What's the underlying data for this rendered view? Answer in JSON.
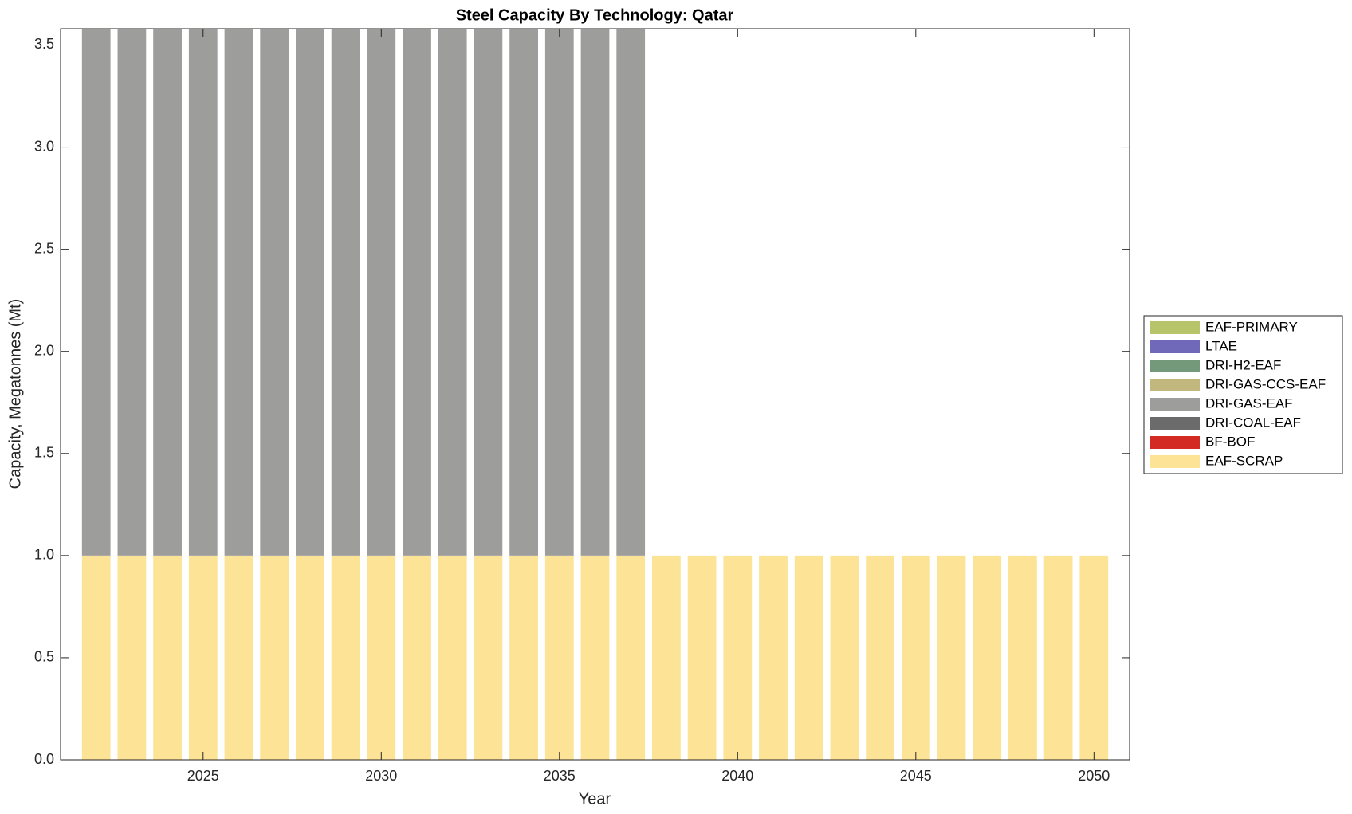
{
  "chart_data": {
    "type": "stacked_bar",
    "title": "Steel Capacity By Technology: Qatar",
    "xlabel": "Year",
    "ylabel": "Capacity, Megatonnes (Mt)",
    "x": [
      2022,
      2023,
      2024,
      2025,
      2026,
      2027,
      2028,
      2029,
      2030,
      2031,
      2032,
      2033,
      2034,
      2035,
      2036,
      2037,
      2038,
      2039,
      2040,
      2041,
      2042,
      2043,
      2044,
      2045,
      2046,
      2047,
      2048,
      2049,
      2050
    ],
    "series": [
      {
        "name": "EAF-SCRAP",
        "color": "#fde395",
        "values": [
          1,
          1,
          1,
          1,
          1,
          1,
          1,
          1,
          1,
          1,
          1,
          1,
          1,
          1,
          1,
          1,
          1,
          1,
          1,
          1,
          1,
          1,
          1,
          1,
          1,
          1,
          1,
          1,
          1
        ]
      },
      {
        "name": "BF-BOF",
        "color": "#d42a24",
        "values": [
          0,
          0,
          0,
          0,
          0,
          0,
          0,
          0,
          0,
          0,
          0,
          0,
          0,
          0,
          0,
          0,
          0,
          0,
          0,
          0,
          0,
          0,
          0,
          0,
          0,
          0,
          0,
          0,
          0
        ]
      },
      {
        "name": "DRI-COAL-EAF",
        "color": "#6b6b6b",
        "values": [
          0,
          0,
          0,
          0,
          0,
          0,
          0,
          0,
          0,
          0,
          0,
          0,
          0,
          0,
          0,
          0,
          0,
          0,
          0,
          0,
          0,
          0,
          0,
          0,
          0,
          0,
          0,
          0,
          0
        ]
      },
      {
        "name": "DRI-GAS-EAF",
        "color": "#9d9d9c",
        "values": [
          2.58,
          2.58,
          2.58,
          2.58,
          2.58,
          2.58,
          2.58,
          2.58,
          2.58,
          2.58,
          2.58,
          2.58,
          2.58,
          2.58,
          2.58,
          2.58,
          0,
          0,
          0,
          0,
          0,
          0,
          0,
          0,
          0,
          0,
          0,
          0,
          0
        ]
      },
      {
        "name": "DRI-GAS-CCS-EAF",
        "color": "#c2b87e",
        "values": [
          0,
          0,
          0,
          0,
          0,
          0,
          0,
          0,
          0,
          0,
          0,
          0,
          0,
          0,
          0,
          0,
          0,
          0,
          0,
          0,
          0,
          0,
          0,
          0,
          0,
          0,
          0,
          0,
          0
        ]
      },
      {
        "name": "DRI-H2-EAF",
        "color": "#74987a",
        "values": [
          0,
          0,
          0,
          0,
          0,
          0,
          0,
          0,
          0,
          0,
          0,
          0,
          0,
          0,
          0,
          0,
          0,
          0,
          0,
          0,
          0,
          0,
          0,
          0,
          0,
          0,
          0,
          0,
          0
        ]
      },
      {
        "name": "LTAE",
        "color": "#7068b8",
        "values": [
          0,
          0,
          0,
          0,
          0,
          0,
          0,
          0,
          0,
          0,
          0,
          0,
          0,
          0,
          0,
          0,
          0,
          0,
          0,
          0,
          0,
          0,
          0,
          0,
          0,
          0,
          0,
          0,
          0
        ]
      },
      {
        "name": "EAF-PRIMARY",
        "color": "#b8c46a",
        "values": [
          0,
          0,
          0,
          0,
          0,
          0,
          0,
          0,
          0,
          0,
          0,
          0,
          0,
          0,
          0,
          0,
          0,
          0,
          0,
          0,
          0,
          0,
          0,
          0,
          0,
          0,
          0,
          0,
          0
        ]
      }
    ],
    "xlim": [
      2021,
      2051
    ],
    "xticks": [
      2025,
      2030,
      2035,
      2040,
      2045,
      2050
    ],
    "ylim": [
      0,
      3.58
    ],
    "yticks": [
      {
        "value": 0,
        "label": "0.0"
      },
      0.5,
      {
        "value": 1,
        "label": "1.0"
      },
      1.5,
      {
        "value": 2,
        "label": "2.0"
      },
      2.5,
      {
        "value": 3,
        "label": "3.0"
      },
      3.5
    ],
    "grid": false,
    "legend": "right"
  }
}
